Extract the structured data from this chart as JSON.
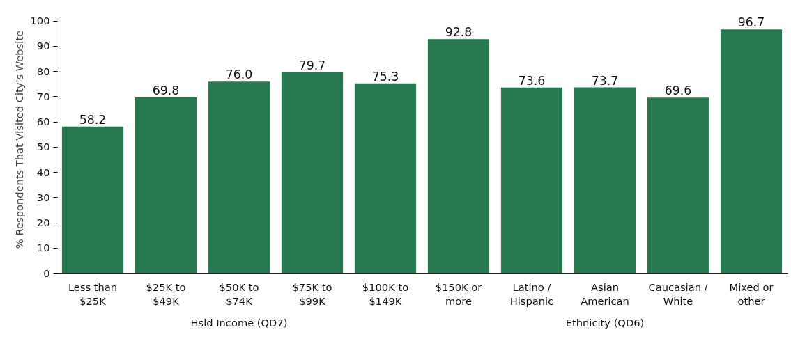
{
  "chart_data": {
    "type": "bar",
    "ylabel": "% Respondents That Visited City's Website",
    "categories": [
      "Less than\n$25K",
      "$25K to\n$49K",
      "$50K to\n$74K",
      "$75K to\n$99K",
      "$100K to\n$149K",
      "$150K or\nmore",
      "Latino /\nHispanic",
      "Asian\nAmerican",
      "Caucasian /\nWhite",
      "Mixed or\nother"
    ],
    "values": [
      58.2,
      69.8,
      76.0,
      79.7,
      75.3,
      92.8,
      73.6,
      73.7,
      69.6,
      96.7
    ],
    "value_labels": [
      "58.2",
      "69.8",
      "76.0",
      "79.7",
      "75.3",
      "92.8",
      "73.6",
      "73.7",
      "69.6",
      "96.7"
    ],
    "color": "#277a4f",
    "ylim": [
      0,
      100
    ],
    "yticks": [
      0,
      10,
      20,
      30,
      40,
      50,
      60,
      70,
      80,
      90,
      100
    ],
    "grid": false,
    "annotations": [
      "Hsld Income (QD7)",
      "Ethnicity (QD6)"
    ]
  }
}
